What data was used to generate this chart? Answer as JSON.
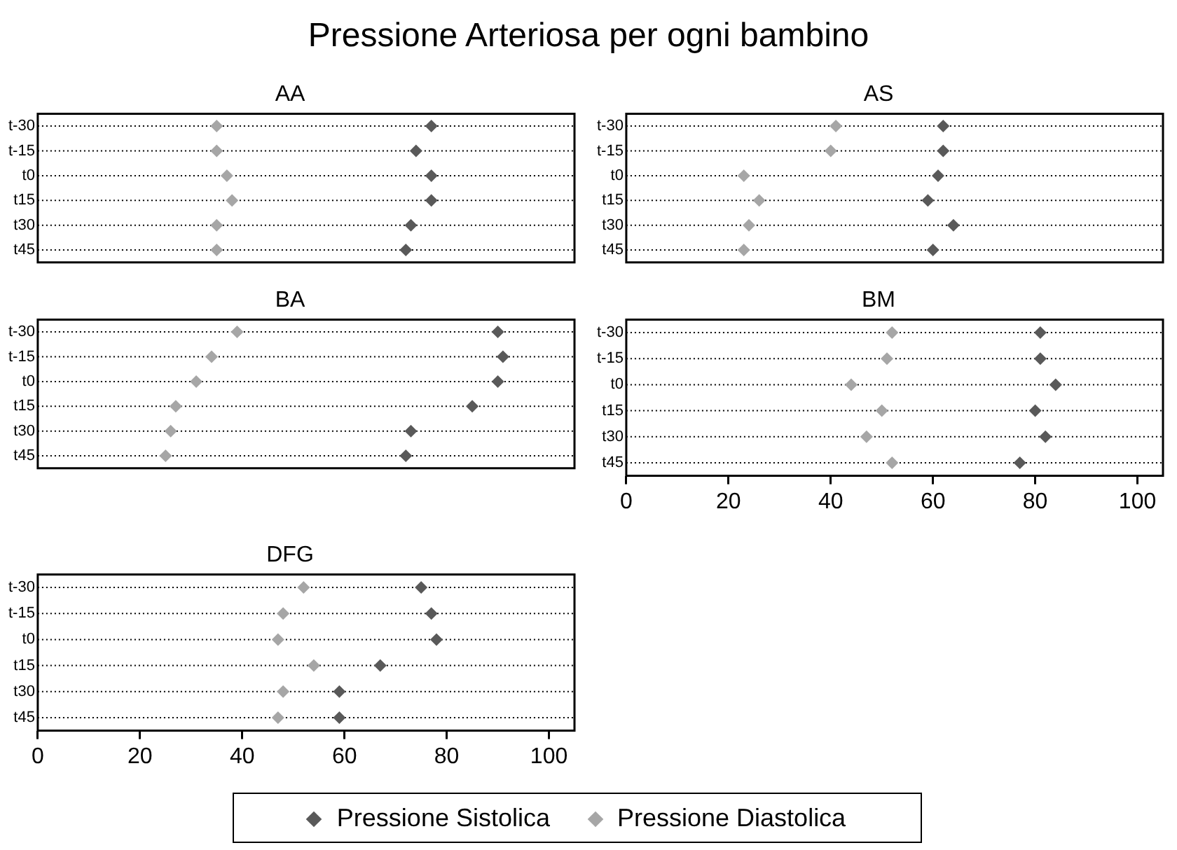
{
  "chart_data": [
    {
      "type": "scatter",
      "orientation": "horizontal",
      "title": "AA",
      "annotations": [
        "Pressione Arteriosa per ogni bambino"
      ],
      "categories": [
        "t-30",
        "t-15",
        "t0",
        "t15",
        "t30",
        "t45"
      ],
      "series": [
        {
          "color": "#595959",
          "values": [
            77,
            74,
            77,
            77,
            73,
            72
          ]
        },
        {
          "color": "#a6a6a6",
          "values": [
            35,
            35,
            37,
            38,
            35,
            35
          ]
        }
      ],
      "xlim": [
        0,
        105
      ],
      "xticks": [
        0,
        20,
        40,
        60,
        80,
        100
      ],
      "grid": "y",
      "marker": "diamond",
      "tick_labels": "y"
    },
    {
      "type": "scatter",
      "orientation": "horizontal",
      "title": "AS",
      "categories": [
        "t-30",
        "t-15",
        "t0",
        "t15",
        "t30",
        "t45"
      ],
      "series": [
        {
          "color": "#595959",
          "values": [
            62,
            62,
            61,
            59,
            64,
            60
          ]
        },
        {
          "color": "#a6a6a6",
          "values": [
            41,
            40,
            23,
            26,
            24,
            23
          ]
        }
      ],
      "xlim": [
        0,
        105
      ],
      "xticks": [
        0,
        20,
        40,
        60,
        80,
        100
      ],
      "grid": "y",
      "marker": "diamond",
      "tick_labels": "y"
    },
    {
      "type": "scatter",
      "orientation": "horizontal",
      "title": "BA",
      "categories": [
        "t-30",
        "t-15",
        "t0",
        "t15",
        "t30",
        "t45"
      ],
      "series": [
        {
          "color": "#595959",
          "values": [
            90,
            91,
            90,
            85,
            73,
            72
          ]
        },
        {
          "color": "#a6a6a6",
          "values": [
            39,
            34,
            31,
            27,
            26,
            25
          ]
        }
      ],
      "xlim": [
        0,
        105
      ],
      "xticks": [
        0,
        20,
        40,
        60,
        80,
        100
      ],
      "grid": "y",
      "marker": "diamond",
      "tick_labels": "y"
    },
    {
      "type": "scatter",
      "orientation": "horizontal",
      "title": "BM",
      "categories": [
        "t-30",
        "t-15",
        "t0",
        "t15",
        "t30",
        "t45"
      ],
      "series": [
        {
          "color": "#595959",
          "values": [
            81,
            81,
            84,
            80,
            82,
            77
          ]
        },
        {
          "color": "#a6a6a6",
          "values": [
            52,
            51,
            44,
            50,
            47,
            52
          ]
        }
      ],
      "xlim": [
        0,
        105
      ],
      "xticks": [
        0,
        20,
        40,
        60,
        80,
        100
      ],
      "grid": "y",
      "marker": "diamond"
    },
    {
      "type": "scatter",
      "orientation": "horizontal",
      "title": "DFG",
      "categories": [
        "t-30",
        "t-15",
        "t0",
        "t15",
        "t30",
        "t45"
      ],
      "series": [
        {
          "name": "Pressione Sistolica",
          "color": "#595959",
          "values": [
            75,
            77,
            78,
            67,
            59,
            59
          ]
        },
        {
          "name": "Pressione Diastolica",
          "color": "#a6a6a6",
          "values": [
            52,
            48,
            47,
            54,
            48,
            47
          ]
        }
      ],
      "xlim": [
        0,
        105
      ],
      "xticks": [
        0,
        20,
        40,
        60,
        80,
        100
      ],
      "grid": "y",
      "marker": "diamond",
      "legend": "bottom"
    }
  ]
}
